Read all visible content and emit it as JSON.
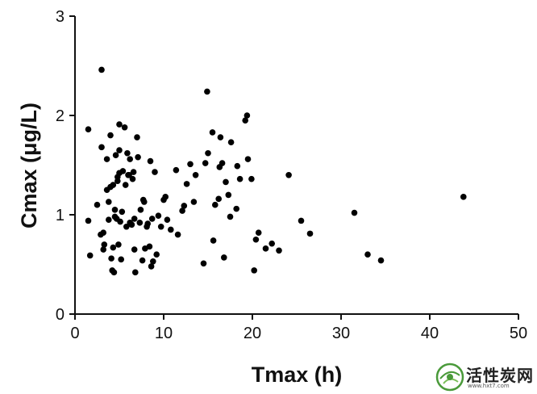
{
  "chart_data": {
    "type": "scatter",
    "xlabel": "Tmax (h)",
    "ylabel": "Cmax (μg/L)",
    "xlim": [
      0,
      50
    ],
    "ylim": [
      0,
      3
    ],
    "xticks": [
      "0",
      "10",
      "20",
      "30",
      "40",
      "50"
    ],
    "yticks": [
      "0",
      "1",
      "2",
      "3"
    ],
    "grid": false,
    "legend": "none",
    "marker_color": "#000000",
    "x": [
      1.5,
      1.5,
      1.7,
      2.5,
      2.9,
      3.0,
      3.0,
      3.2,
      3.2,
      3.3,
      3.6,
      3.6,
      3.8,
      3.8,
      4.0,
      4.0,
      4.1,
      4.2,
      4.3,
      4.3,
      4.4,
      4.5,
      4.5,
      4.6,
      4.7,
      4.8,
      4.8,
      4.9,
      5.0,
      5.0,
      5.0,
      5.1,
      5.2,
      5.3,
      5.4,
      5.6,
      5.7,
      5.8,
      5.9,
      6.0,
      6.1,
      6.2,
      6.2,
      6.4,
      6.5,
      6.6,
      6.7,
      6.7,
      6.8,
      7.0,
      7.1,
      7.3,
      7.4,
      7.6,
      7.7,
      7.8,
      7.9,
      8.1,
      8.2,
      8.4,
      8.5,
      8.6,
      8.7,
      8.8,
      9.0,
      9.2,
      9.4,
      9.7,
      10.0,
      10.2,
      10.4,
      10.8,
      11.4,
      11.6,
      12.1,
      12.3,
      12.6,
      13.0,
      13.4,
      13.6,
      14.5,
      14.7,
      14.9,
      15.0,
      15.5,
      15.6,
      15.8,
      16.2,
      16.3,
      16.4,
      16.6,
      16.8,
      17.0,
      17.3,
      17.5,
      17.6,
      18.2,
      18.3,
      18.6,
      19.2,
      19.4,
      19.5,
      19.9,
      20.2,
      20.4,
      20.7,
      21.5,
      22.2,
      23.0,
      24.1,
      25.5,
      26.5,
      31.5,
      33.0,
      34.5,
      43.8
    ],
    "y": [
      1.86,
      0.94,
      0.59,
      1.1,
      0.8,
      2.46,
      1.68,
      0.65,
      0.82,
      0.7,
      1.25,
      1.56,
      1.13,
      0.95,
      1.28,
      1.8,
      0.56,
      0.44,
      0.67,
      1.3,
      0.42,
      1.05,
      0.98,
      1.6,
      0.96,
      1.38,
      1.34,
      0.7,
      1.91,
      1.42,
      1.65,
      0.93,
      0.55,
      1.03,
      1.44,
      1.88,
      1.3,
      0.88,
      1.62,
      1.4,
      1.4,
      0.92,
      1.56,
      0.9,
      1.36,
      1.43,
      0.96,
      0.65,
      0.42,
      1.78,
      1.58,
      0.92,
      1.05,
      0.54,
      1.15,
      1.13,
      0.66,
      0.88,
      0.91,
      0.68,
      1.54,
      0.48,
      0.96,
      0.53,
      1.43,
      0.6,
      0.99,
      0.88,
      1.15,
      1.18,
      0.95,
      0.85,
      1.45,
      0.8,
      1.04,
      1.09,
      1.31,
      1.51,
      1.13,
      1.4,
      0.51,
      1.52,
      2.24,
      1.62,
      1.83,
      0.74,
      1.1,
      1.16,
      1.48,
      1.78,
      1.52,
      0.57,
      1.33,
      1.2,
      0.98,
      1.73,
      1.06,
      1.49,
      1.36,
      1.95,
      2.0,
      1.56,
      1.36,
      0.44,
      0.75,
      0.82,
      0.66,
      0.71,
      0.64,
      1.4,
      0.94,
      0.81,
      1.02,
      0.6,
      0.54,
      1.18
    ]
  },
  "watermark": {
    "text": "活性炭网",
    "url": "www.hxt7.com",
    "logo_icon": "leaf-globe-logo",
    "accent": "#4a9a3a"
  }
}
